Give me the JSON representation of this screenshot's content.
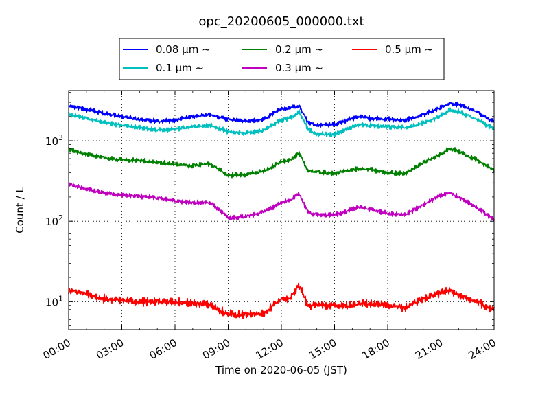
{
  "chart_data": {
    "type": "line",
    "title": "opc_20200605_000000.txt",
    "xlabel": "Time on 2020-06-05 (JST)",
    "ylabel": "Count / L",
    "yscale": "log",
    "ylim": [
      4.5,
      4200
    ],
    "xlim": [
      "00:00",
      "24:00"
    ],
    "grid": true,
    "legend_position": "top-center",
    "x_tick_labels": [
      "00:00",
      "03:00",
      "06:00",
      "09:00",
      "12:00",
      "15:00",
      "18:00",
      "21:00",
      "24:00"
    ],
    "y_tick_labels": [
      {
        "base": "10",
        "exp": "1"
      },
      {
        "base": "10",
        "exp": "2"
      },
      {
        "base": "10",
        "exp": "3"
      }
    ],
    "x_hours": [
      0,
      1,
      2,
      3,
      4,
      5,
      6,
      7,
      8,
      9,
      10,
      11,
      12,
      12.5,
      13,
      13.5,
      14,
      15,
      16,
      16.5,
      17,
      18,
      19,
      20,
      21,
      21.5,
      22,
      23,
      24
    ],
    "series": [
      {
        "name": "0.08 μm ~",
        "color": "#0000ff",
        "values": [
          2700,
          2450,
          2200,
          2000,
          1850,
          1750,
          1800,
          2000,
          2100,
          1850,
          1750,
          1850,
          2500,
          2550,
          2700,
          1700,
          1550,
          1600,
          1900,
          2000,
          1900,
          1850,
          1800,
          2100,
          2600,
          2900,
          2800,
          2300,
          1700
        ]
      },
      {
        "name": "0.1 μm ~",
        "color": "#00bfbf",
        "values": [
          2150,
          1900,
          1700,
          1550,
          1450,
          1350,
          1400,
          1500,
          1550,
          1300,
          1250,
          1350,
          1800,
          1900,
          2300,
          1400,
          1200,
          1200,
          1500,
          1600,
          1550,
          1500,
          1450,
          1650,
          2050,
          2450,
          2300,
          1850,
          1400
        ]
      },
      {
        "name": "0.2 μm ~",
        "color": "#008000",
        "values": [
          780,
          680,
          620,
          580,
          570,
          540,
          510,
          490,
          520,
          370,
          380,
          420,
          550,
          570,
          720,
          420,
          410,
          390,
          440,
          450,
          440,
          400,
          390,
          530,
          690,
          800,
          740,
          580,
          430
        ]
      },
      {
        "name": "0.3 μm ~",
        "color": "#bf00bf",
        "values": [
          290,
          250,
          225,
          210,
          205,
          195,
          180,
          170,
          170,
          110,
          115,
          130,
          170,
          185,
          220,
          130,
          120,
          120,
          140,
          150,
          140,
          125,
          120,
          160,
          210,
          225,
          200,
          150,
          105
        ]
      },
      {
        "name": "0.5 μm ~",
        "color": "#ff0000",
        "values": [
          14,
          12.5,
          11,
          10.5,
          10,
          10,
          10,
          9.5,
          9,
          7,
          7,
          7,
          11,
          11,
          16,
          9,
          9,
          9,
          9,
          9.5,
          9.5,
          9,
          8.5,
          11,
          13,
          14,
          12,
          10,
          8
        ]
      }
    ]
  }
}
